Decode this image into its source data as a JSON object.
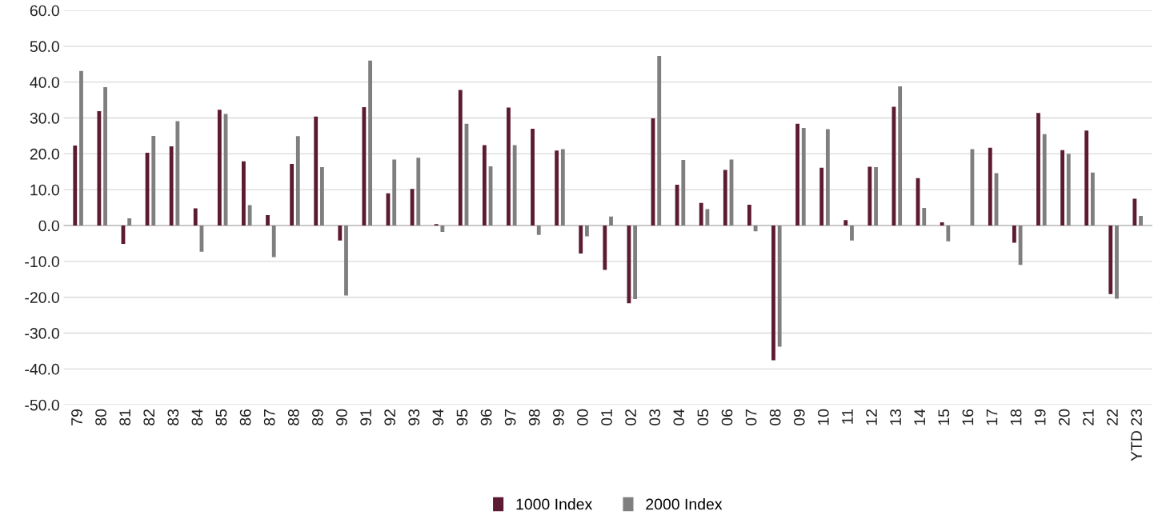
{
  "chart_data": {
    "type": "bar",
    "categories": [
      "79",
      "80",
      "81",
      "82",
      "83",
      "84",
      "85",
      "86",
      "87",
      "88",
      "89",
      "90",
      "91",
      "92",
      "93",
      "94",
      "95",
      "96",
      "97",
      "98",
      "99",
      "00",
      "01",
      "02",
      "03",
      "04",
      "05",
      "06",
      "07",
      "08",
      "09",
      "10",
      "11",
      "12",
      "13",
      "14",
      "15",
      "16",
      "17",
      "18",
      "19",
      "20",
      "21",
      "22",
      "YTD 23"
    ],
    "series": [
      {
        "name": "1000 Index",
        "color": "#5c1a33",
        "values": [
          22.3,
          31.9,
          -5.1,
          20.3,
          22.1,
          4.8,
          32.3,
          17.9,
          2.9,
          17.2,
          30.4,
          -4.2,
          33.0,
          9.0,
          10.2,
          0.4,
          37.8,
          22.4,
          32.9,
          27.0,
          20.9,
          -7.8,
          -12.4,
          -21.7,
          29.9,
          11.4,
          6.3,
          15.5,
          5.8,
          -37.6,
          28.4,
          16.1,
          1.5,
          16.4,
          33.1,
          13.2,
          0.9,
          null,
          21.7,
          -4.8,
          31.4,
          21.0,
          26.5,
          -19.1,
          7.5
        ]
      },
      {
        "name": "2000 Index",
        "color": "#7f7f7f",
        "values": [
          43.1,
          38.6,
          2.0,
          25.0,
          29.1,
          -7.3,
          31.1,
          5.7,
          -8.8,
          24.9,
          16.3,
          -19.5,
          46.0,
          18.4,
          18.9,
          -1.8,
          28.4,
          16.5,
          22.4,
          -2.6,
          21.3,
          -3.0,
          2.5,
          -20.5,
          47.3,
          18.3,
          4.6,
          18.4,
          -1.6,
          -33.8,
          27.2,
          26.9,
          -4.2,
          16.3,
          38.8,
          4.9,
          -4.4,
          21.3,
          14.6,
          -11.0,
          25.5,
          20.0,
          14.8,
          -20.4,
          2.7
        ]
      }
    ],
    "ylim": [
      -50,
      60
    ],
    "yticks": [
      {
        "value": -50,
        "label": "-50.0"
      },
      {
        "value": -40,
        "label": "-40.0"
      },
      {
        "value": -30,
        "label": "-30.0"
      },
      {
        "value": -20,
        "label": "-20.0"
      },
      {
        "value": -10,
        "label": "-10.0"
      },
      {
        "value": 0,
        "label": "0.0"
      },
      {
        "value": 10,
        "label": "10.0"
      },
      {
        "value": 20,
        "label": "20.0"
      },
      {
        "value": 30,
        "label": "30.0"
      },
      {
        "value": 40,
        "label": "40.0"
      },
      {
        "value": 50,
        "label": "50.0"
      },
      {
        "value": 60,
        "label": "60.0"
      }
    ],
    "grid": "y",
    "legend": "bottom"
  }
}
